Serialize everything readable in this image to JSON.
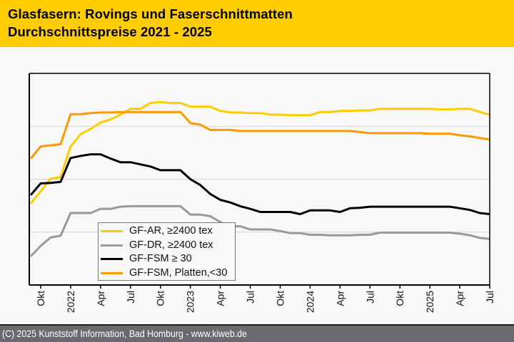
{
  "header": {
    "title_line1": "Glasfasern: Rovings und Faserschnittmatten",
    "title_line2": "Durchschnittspreise 2021 - 2025"
  },
  "footer": {
    "copyright": "(C) 2025 Kunststoff Information, Bad Homburg - www.kiweb.de"
  },
  "colors": {
    "header_bg": "#ffcc00",
    "footer_bg": "#6a6a6e"
  },
  "chart_data": {
    "type": "line",
    "title": "Glasfasern: Rovings und Faserschnittmatten – Durchschnittspreise 2021 - 2025",
    "xlabel": "",
    "ylabel": "",
    "y_axis_note": "No y-axis tick labels shown; values are a relative index where gridlines = 1, 2, 3",
    "ylim": [
      0,
      4
    ],
    "grid": true,
    "legend_position": "bottom-left",
    "x_start": "2021-09",
    "x_end": "2025-07",
    "x": [
      "2021-09",
      "2021-10",
      "2021-11",
      "2021-12",
      "2022-01",
      "2022-02",
      "2022-03",
      "2022-04",
      "2022-05",
      "2022-06",
      "2022-07",
      "2022-08",
      "2022-09",
      "2022-10",
      "2022-11",
      "2022-12",
      "2023-01",
      "2023-02",
      "2023-03",
      "2023-04",
      "2023-05",
      "2023-06",
      "2023-07",
      "2023-08",
      "2023-09",
      "2023-10",
      "2023-11",
      "2023-12",
      "2024-01",
      "2024-02",
      "2024-03",
      "2024-04",
      "2024-05",
      "2024-06",
      "2024-07",
      "2024-08",
      "2024-09",
      "2024-10",
      "2024-11",
      "2024-12",
      "2025-01",
      "2025-02",
      "2025-03",
      "2025-04",
      "2025-05",
      "2025-06",
      "2025-07"
    ],
    "tick_labels": [
      {
        "month": "2021-10",
        "label": "Okt"
      },
      {
        "month": "2022-01",
        "label": "2022"
      },
      {
        "month": "2022-04",
        "label": "Apr"
      },
      {
        "month": "2022-07",
        "label": "Jul"
      },
      {
        "month": "2022-10",
        "label": "Okt"
      },
      {
        "month": "2023-01",
        "label": "2023"
      },
      {
        "month": "2023-04",
        "label": "Apr"
      },
      {
        "month": "2023-07",
        "label": "Jul"
      },
      {
        "month": "2023-10",
        "label": "Okt"
      },
      {
        "month": "2024-01",
        "label": "2024"
      },
      {
        "month": "2024-04",
        "label": "Apr"
      },
      {
        "month": "2024-07",
        "label": "Jul"
      },
      {
        "month": "2024-10",
        "label": "Okt"
      },
      {
        "month": "2025-01",
        "label": "2025"
      },
      {
        "month": "2025-04",
        "label": "Apr"
      },
      {
        "month": "2025-07",
        "label": "Jul"
      }
    ],
    "gridlines": [
      1,
      2,
      3
    ],
    "series": [
      {
        "name": "GF-AR, ≥2400 tex",
        "color": "#ffcc00",
        "values": [
          1.54,
          1.77,
          2.01,
          2.04,
          2.62,
          2.85,
          2.95,
          3.07,
          3.13,
          3.22,
          3.33,
          3.33,
          3.44,
          3.46,
          3.44,
          3.44,
          3.37,
          3.37,
          3.37,
          3.29,
          3.26,
          3.26,
          3.25,
          3.25,
          3.22,
          3.22,
          3.21,
          3.21,
          3.21,
          3.27,
          3.27,
          3.29,
          3.29,
          3.3,
          3.3,
          3.33,
          3.33,
          3.33,
          3.33,
          3.33,
          3.33,
          3.32,
          3.32,
          3.33,
          3.33,
          3.27,
          3.22
        ]
      },
      {
        "name": "GF-DR, ≥2400 tex",
        "color": "#999999",
        "values": [
          0.54,
          0.74,
          0.9,
          0.93,
          1.36,
          1.36,
          1.36,
          1.44,
          1.44,
          1.48,
          1.49,
          1.49,
          1.49,
          1.49,
          1.49,
          1.49,
          1.33,
          1.33,
          1.3,
          1.19,
          1.11,
          1.11,
          1.05,
          1.05,
          1.05,
          1.02,
          0.98,
          0.98,
          0.95,
          0.95,
          0.94,
          0.94,
          0.94,
          0.95,
          0.95,
          0.99,
          0.99,
          0.99,
          0.99,
          0.99,
          0.99,
          0.99,
          0.99,
          0.97,
          0.94,
          0.89,
          0.87
        ]
      },
      {
        "name": "GF-FSM ≥ 30",
        "color": "#000000",
        "values": [
          1.7,
          1.92,
          1.93,
          1.95,
          2.4,
          2.44,
          2.47,
          2.47,
          2.39,
          2.32,
          2.32,
          2.28,
          2.24,
          2.17,
          2.17,
          2.17,
          2.0,
          1.89,
          1.72,
          1.61,
          1.56,
          1.49,
          1.44,
          1.38,
          1.38,
          1.38,
          1.38,
          1.34,
          1.41,
          1.41,
          1.41,
          1.38,
          1.45,
          1.46,
          1.48,
          1.48,
          1.48,
          1.48,
          1.48,
          1.48,
          1.48,
          1.48,
          1.48,
          1.45,
          1.42,
          1.36,
          1.34
        ]
      },
      {
        "name": "GF-FSM, Platten,<30",
        "color": "#ff9900",
        "values": [
          2.39,
          2.62,
          2.64,
          2.66,
          3.23,
          3.23,
          3.25,
          3.26,
          3.26,
          3.27,
          3.27,
          3.27,
          3.27,
          3.27,
          3.27,
          3.27,
          3.06,
          3.03,
          2.93,
          2.93,
          2.93,
          2.91,
          2.91,
          2.91,
          2.91,
          2.91,
          2.91,
          2.91,
          2.91,
          2.91,
          2.91,
          2.91,
          2.91,
          2.89,
          2.87,
          2.87,
          2.87,
          2.87,
          2.87,
          2.87,
          2.86,
          2.86,
          2.86,
          2.83,
          2.81,
          2.78,
          2.75
        ]
      }
    ]
  }
}
